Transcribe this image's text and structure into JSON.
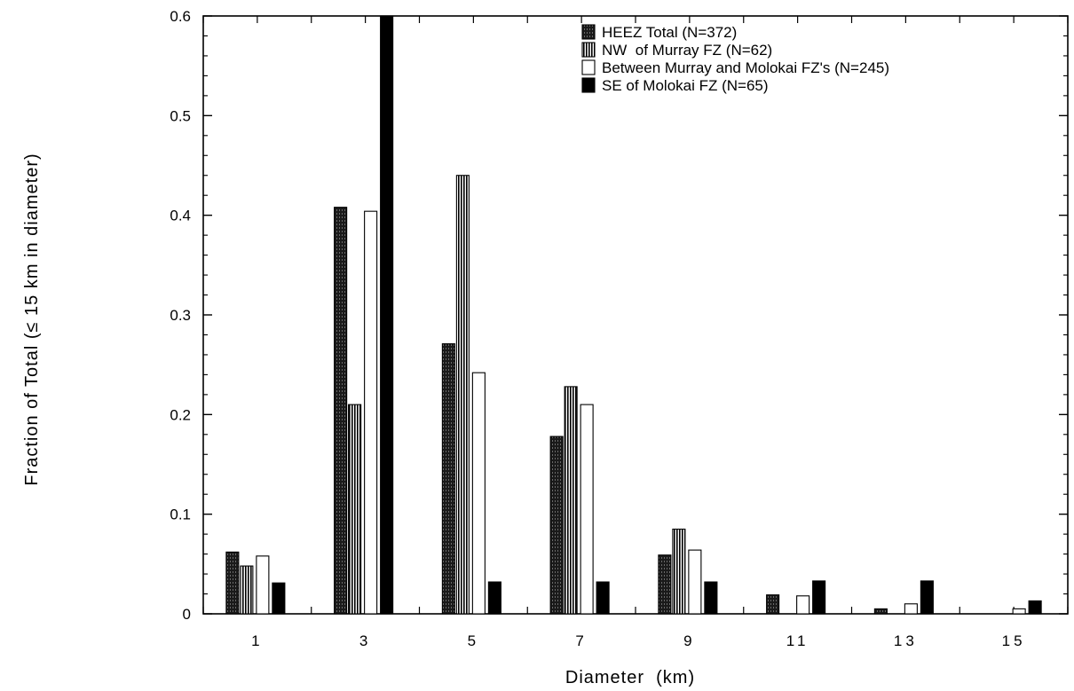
{
  "chart_data": {
    "type": "bar",
    "xlabel": "Diameter  (km)",
    "ylabel": "Fraction of Total (≤ 15 km in diameter)",
    "ylim": [
      0,
      0.6
    ],
    "yticks": [
      "0",
      "0.1",
      "0.2",
      "0.3",
      "0.4",
      "0.5",
      "0.6"
    ],
    "categories": [
      "1",
      "3",
      "5",
      "7",
      "9",
      "11",
      "13",
      "15"
    ],
    "grid": false,
    "legend_position": "top-right",
    "series": [
      {
        "name": "HEEZ Total (N=372)",
        "pattern": "dense-dark",
        "values": [
          0.062,
          0.408,
          0.271,
          0.178,
          0.059,
          0.019,
          0.005,
          0.0
        ]
      },
      {
        "name": "NW  of Murray FZ (N=62)",
        "pattern": "vertical-lines",
        "values": [
          0.048,
          0.21,
          0.44,
          0.228,
          0.085,
          0.0,
          0.0,
          0.0
        ]
      },
      {
        "name": "Between Murray and Molokai FZ's (N=245)",
        "pattern": "open",
        "values": [
          0.058,
          0.404,
          0.242,
          0.21,
          0.064,
          0.018,
          0.01,
          0.005
        ]
      },
      {
        "name": "SE of Molokai FZ (N=65)",
        "pattern": "solid-black",
        "values": [
          0.031,
          0.6,
          0.032,
          0.032,
          0.032,
          0.033,
          0.033,
          0.013
        ]
      }
    ]
  }
}
